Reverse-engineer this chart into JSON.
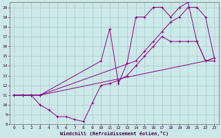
{
  "xlabel": "Windchill (Refroidissement éolien,°C)",
  "bg_color": "#cce8e8",
  "line_color": "#880088",
  "grid_color": "#aacccc",
  "xlim": [
    -0.5,
    23.5
  ],
  "ylim": [
    8,
    20.5
  ],
  "xticks": [
    0,
    1,
    2,
    3,
    4,
    5,
    6,
    7,
    8,
    9,
    10,
    11,
    12,
    13,
    14,
    15,
    16,
    17,
    18,
    19,
    20,
    21,
    22,
    23
  ],
  "yticks": [
    8,
    9,
    10,
    11,
    12,
    13,
    14,
    15,
    16,
    17,
    18,
    19,
    20
  ],
  "series": [
    {
      "x": [
        0,
        1,
        2,
        3,
        22,
        23
      ],
      "y": [
        11,
        11,
        11,
        11,
        14.5,
        14.8
      ]
    },
    {
      "x": [
        0,
        1,
        2,
        3,
        14,
        15,
        16,
        17,
        18,
        19,
        20,
        21,
        22,
        23
      ],
      "y": [
        11,
        11,
        11,
        11,
        14.5,
        15.5,
        16.5,
        17.5,
        18.5,
        19,
        20,
        20,
        19,
        14.8
      ]
    },
    {
      "x": [
        0,
        1,
        2,
        3,
        10,
        11,
        12,
        13,
        14,
        15,
        16,
        17,
        18,
        19,
        20,
        21,
        22,
        23
      ],
      "y": [
        11,
        11,
        11,
        11,
        14.5,
        17.8,
        12.2,
        14.3,
        19,
        19,
        20,
        20,
        19,
        20,
        20.5,
        16.5,
        14.5,
        14.8
      ]
    },
    {
      "x": [
        0,
        1,
        2,
        3,
        4,
        5,
        6,
        7,
        8,
        9,
        10,
        11,
        12,
        13,
        14,
        15,
        16,
        17,
        18,
        19,
        20,
        21,
        22,
        23
      ],
      "y": [
        11,
        11,
        11,
        10,
        9.5,
        8.8,
        8.8,
        8.5,
        8.3,
        10.2,
        12,
        12.2,
        12.5,
        13,
        14,
        15,
        16,
        17,
        16.5,
        16.5,
        16.5,
        16.5,
        14.5,
        14.5
      ]
    }
  ]
}
